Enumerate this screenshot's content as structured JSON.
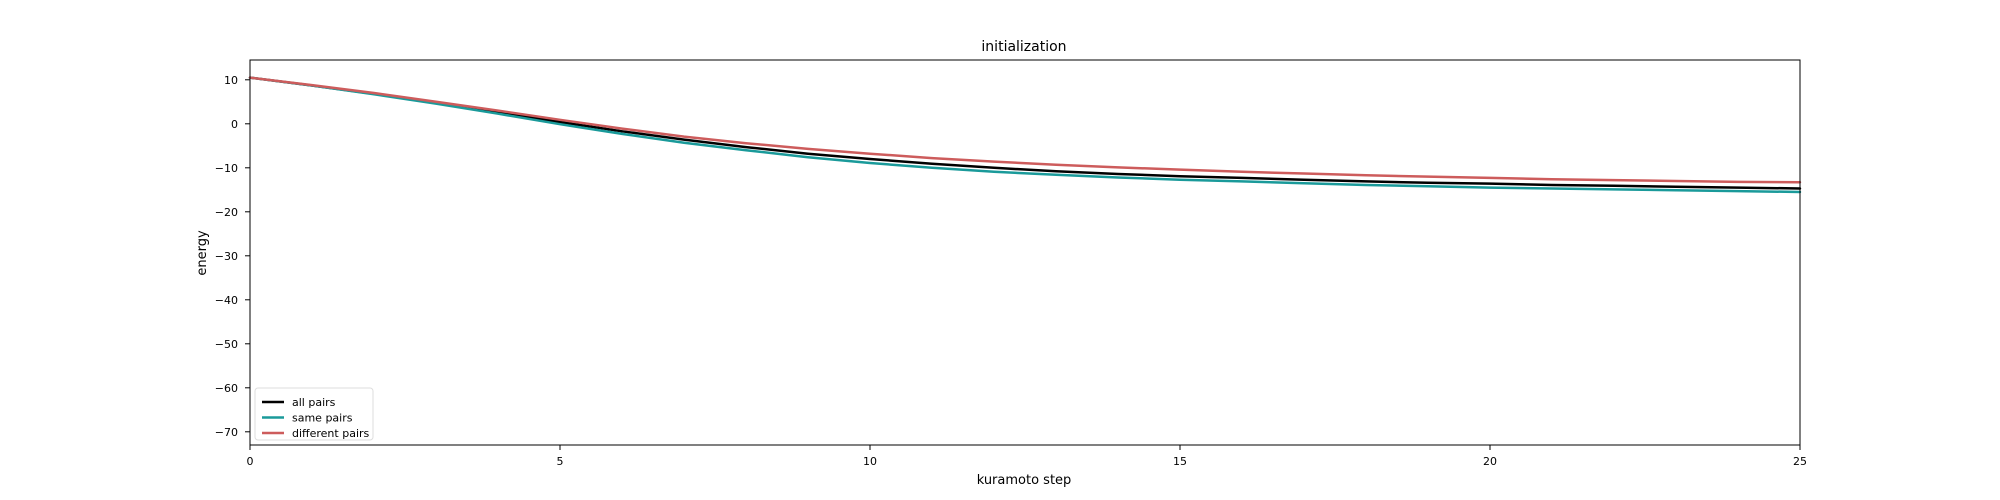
{
  "chart_data": {
    "type": "line",
    "title": "initialization",
    "xlabel": "kuramoto step",
    "ylabel": "energy",
    "xlim": [
      0,
      25
    ],
    "ylim": [
      -73,
      14.5
    ],
    "xticks": [
      0,
      5,
      10,
      15,
      20,
      25
    ],
    "yticks": [
      10,
      0,
      -10,
      -20,
      -30,
      -40,
      -50,
      -60,
      -70
    ],
    "ytick_labels": [
      "10",
      "0",
      "−10",
      "−20",
      "−30",
      "−40",
      "−50",
      "−60",
      "−70"
    ],
    "grid": false,
    "legend_position": "lower-left",
    "x": [
      0,
      1,
      2,
      3,
      4,
      5,
      6,
      7,
      8,
      9,
      10,
      11,
      12,
      13,
      14,
      15,
      16,
      17,
      18,
      19,
      20,
      21,
      22,
      23,
      24,
      25
    ],
    "series": [
      {
        "name": "all pairs",
        "color": "#000000",
        "values": [
          10.5,
          8.7,
          6.8,
          4.8,
          2.6,
          0.4,
          -1.7,
          -3.6,
          -5.3,
          -6.8,
          -8.0,
          -9.1,
          -10.0,
          -10.8,
          -11.4,
          -11.9,
          -12.3,
          -12.7,
          -13.1,
          -13.4,
          -13.6,
          -13.9,
          -14.1,
          -14.3,
          -14.5,
          -14.7
        ]
      },
      {
        "name": "same pairs",
        "color": "#1a9a9a",
        "values": [
          10.5,
          8.7,
          6.7,
          4.6,
          2.3,
          -0.1,
          -2.3,
          -4.3,
          -6.0,
          -7.6,
          -8.9,
          -10.0,
          -10.9,
          -11.6,
          -12.2,
          -12.7,
          -13.1,
          -13.5,
          -13.9,
          -14.2,
          -14.5,
          -14.7,
          -14.9,
          -15.1,
          -15.3,
          -15.5
        ]
      },
      {
        "name": "different pairs",
        "color": "#cd5c5c",
        "values": [
          10.5,
          8.8,
          7.0,
          5.0,
          3.0,
          0.9,
          -1.1,
          -2.9,
          -4.4,
          -5.7,
          -6.8,
          -7.8,
          -8.6,
          -9.3,
          -9.9,
          -10.4,
          -10.9,
          -11.3,
          -11.7,
          -12.0,
          -12.3,
          -12.6,
          -12.8,
          -13.0,
          -13.2,
          -13.3
        ]
      }
    ]
  }
}
